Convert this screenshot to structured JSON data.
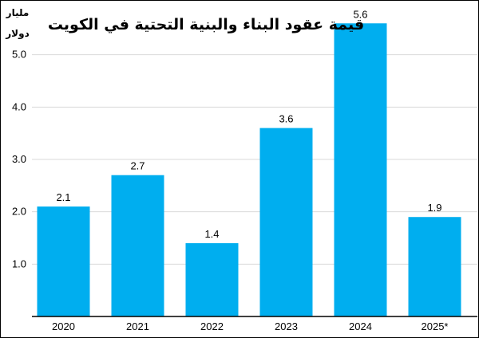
{
  "chart_data": {
    "type": "bar",
    "title": "قيمة عقود البناء والبنية التحتية في الكويت",
    "unit_line1": "مليار",
    "unit_line2": "دولار",
    "categories": [
      "2020",
      "2021",
      "2022",
      "2023",
      "2024",
      "2025*"
    ],
    "values": [
      2.1,
      2.7,
      1.4,
      3.6,
      5.6,
      1.9
    ],
    "value_labels": [
      "2.1",
      "2.7",
      "1.4",
      "3.6",
      "5.6",
      "1.9"
    ],
    "y_ticks": [
      1.0,
      2.0,
      3.0,
      4.0,
      5.0
    ],
    "y_tick_labels": [
      "1.0",
      "2.0",
      "3.0",
      "4.0",
      "5.0"
    ],
    "ylim": [
      0,
      6.0
    ],
    "grid": true,
    "bar_color": "#00aeef",
    "grid_color": "#d9d9d9"
  }
}
